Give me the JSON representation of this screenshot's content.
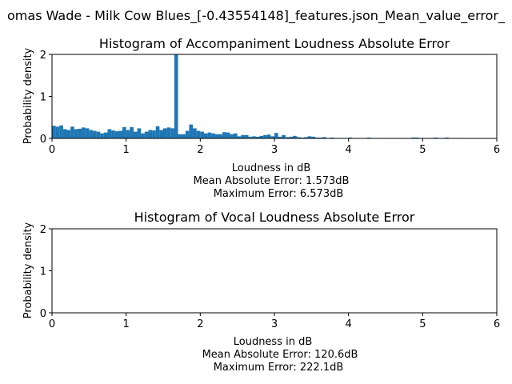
{
  "figure": {
    "suptitle": "omas Wade - Milk Cow Blues_[-0.43554148]_features.json_Mean_value_error_"
  },
  "chart_data": [
    {
      "type": "bar",
      "title": "Histogram of Accompaniment Loudness Absolute Error",
      "xlabel": "Loudness in dB",
      "ylabel": "Probability density",
      "xlim": [
        0,
        6
      ],
      "ylim": [
        0,
        2
      ],
      "xticks": [
        "0",
        "1",
        "2",
        "3",
        "4",
        "5",
        "6"
      ],
      "yticks": [
        "0",
        "1",
        "2"
      ],
      "grid": false,
      "bar_color": "#1f77b4",
      "stats": [
        "Mean Absolute Error: 1.573dB",
        "Maximum Error: 6.573dB"
      ],
      "bin_width": 0.05,
      "bin_starts": [
        0,
        0.05,
        0.1,
        0.15,
        0.2,
        0.25,
        0.3,
        0.35,
        0.4,
        0.45,
        0.5,
        0.55,
        0.6,
        0.65,
        0.7,
        0.75,
        0.8,
        0.85,
        0.9,
        0.95,
        1.0,
        1.05,
        1.1,
        1.15,
        1.2,
        1.25,
        1.3,
        1.35,
        1.4,
        1.45,
        1.5,
        1.55,
        1.6,
        1.65,
        1.7,
        1.75,
        1.8,
        1.85,
        1.9,
        1.95,
        2.0,
        2.05,
        2.1,
        2.15,
        2.2,
        2.25,
        2.3,
        2.35,
        2.4,
        2.45,
        2.5,
        2.55,
        2.6,
        2.65,
        2.7,
        2.75,
        2.8,
        2.85,
        2.9,
        2.95,
        3.0,
        3.05,
        3.1,
        3.15,
        3.2,
        3.25,
        3.3,
        3.35,
        3.4,
        3.45,
        3.5,
        3.55,
        3.6,
        3.65,
        3.7,
        3.75,
        3.8,
        3.85,
        3.9,
        3.95,
        4.0,
        4.05,
        4.1,
        4.15,
        4.2,
        4.25,
        4.3,
        4.35,
        4.4,
        4.45,
        4.5,
        4.55,
        4.6,
        4.65,
        4.7,
        4.75,
        4.8,
        4.85,
        4.9,
        4.95,
        5.0,
        5.05,
        5.1,
        5.15,
        5.2,
        5.25,
        5.3,
        5.35,
        5.4,
        5.45
      ],
      "values": [
        0.3,
        0.28,
        0.31,
        0.22,
        0.2,
        0.28,
        0.22,
        0.23,
        0.26,
        0.24,
        0.2,
        0.18,
        0.16,
        0.12,
        0.14,
        0.22,
        0.19,
        0.17,
        0.18,
        0.27,
        0.2,
        0.27,
        0.16,
        0.24,
        0.12,
        0.16,
        0.2,
        0.19,
        0.29,
        0.2,
        0.24,
        0.26,
        0.24,
        2.0,
        0.1,
        0.1,
        0.18,
        0.33,
        0.24,
        0.18,
        0.16,
        0.12,
        0.14,
        0.12,
        0.1,
        0.1,
        0.15,
        0.14,
        0.1,
        0.12,
        0.05,
        0.08,
        0.08,
        0.04,
        0.05,
        0.04,
        0.06,
        0.08,
        0.09,
        0.05,
        0.13,
        0.04,
        0.08,
        0.03,
        0.04,
        0.06,
        0.03,
        0.02,
        0.03,
        0.05,
        0.04,
        0.02,
        0.02,
        0.03,
        0.01,
        0.02,
        0.01,
        0.01,
        0.01,
        0.01,
        0.02,
        0.01,
        0.01,
        0.01,
        0.01,
        0.02,
        0.01,
        0.01,
        0.01,
        0.01,
        0.01,
        0.01,
        0.01,
        0.01,
        0.01,
        0.01,
        0.01,
        0.02,
        0.02,
        0.01,
        0.01,
        0.01,
        0.01,
        0.02,
        0.01,
        0.01,
        0.02,
        0.01,
        0.01,
        0.01
      ]
    },
    {
      "type": "bar",
      "title": "Histogram of Vocal Loudness Absolute Error",
      "xlabel": "Loudness in dB",
      "ylabel": "Probability density",
      "xlim": [
        0,
        6
      ],
      "ylim": [
        0,
        2
      ],
      "xticks": [
        "0",
        "1",
        "2",
        "3",
        "4",
        "5",
        "6"
      ],
      "yticks": [
        "0",
        "1",
        "2"
      ],
      "grid": false,
      "bar_color": "#1f77b4",
      "stats": [
        "Mean Absolute Error: 120.6dB",
        "Maximum Error: 222.1dB"
      ],
      "bin_width": 0.05,
      "bin_starts": [],
      "values": []
    }
  ]
}
